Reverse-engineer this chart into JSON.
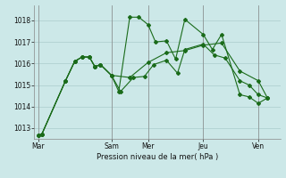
{
  "background_color": "#cce8e8",
  "grid_color": "#aacccc",
  "line_color": "#1a6b1a",
  "marker_color": "#1a6b1a",
  "title": "Pression niveau de la mer( hPa )",
  "ylim": [
    1012.5,
    1018.7
  ],
  "yticks": [
    1013,
    1014,
    1015,
    1016,
    1017,
    1018
  ],
  "day_labels": [
    "Mar",
    "Sam",
    "Mer",
    "Jeu",
    "Ven"
  ],
  "day_positions": [
    0,
    4,
    6,
    9,
    12
  ],
  "xlim": [
    -0.2,
    13.2
  ],
  "series1_x": [
    0,
    0.2,
    1.5,
    2.0,
    2.4,
    2.8,
    3.1,
    3.4,
    4.0,
    4.4,
    5.0,
    5.5,
    6.0,
    6.4,
    7.0,
    7.5,
    8.0,
    9.0,
    9.5,
    10.0,
    11.0,
    11.5,
    12.0,
    12.5
  ],
  "series1_y": [
    1012.65,
    1012.7,
    1015.2,
    1016.1,
    1016.3,
    1016.3,
    1015.85,
    1015.95,
    1015.45,
    1014.7,
    1018.15,
    1018.15,
    1017.8,
    1017.0,
    1017.05,
    1016.2,
    1018.05,
    1017.35,
    1016.65,
    1017.35,
    1014.55,
    1014.45,
    1014.15,
    1014.4
  ],
  "series2_x": [
    0,
    0.2,
    1.5,
    2.0,
    2.4,
    2.8,
    3.1,
    3.4,
    4.0,
    4.5,
    5.2,
    5.8,
    6.3,
    7.0,
    7.6,
    8.0,
    9.0,
    9.6,
    10.2,
    11.0,
    11.5,
    12.0,
    12.5
  ],
  "series2_y": [
    1012.65,
    1012.7,
    1015.2,
    1016.1,
    1016.3,
    1016.3,
    1015.85,
    1015.95,
    1015.45,
    1014.7,
    1015.35,
    1015.4,
    1015.95,
    1016.15,
    1015.55,
    1016.65,
    1016.9,
    1016.4,
    1016.25,
    1015.2,
    1015.0,
    1014.55,
    1014.4
  ],
  "series3_x": [
    0,
    0.2,
    1.5,
    2.0,
    2.4,
    2.8,
    3.1,
    3.4,
    4.0,
    5.0,
    6.0,
    7.0,
    8.0,
    9.0,
    10.0,
    11.0,
    12.0,
    12.5
  ],
  "series3_y": [
    1012.65,
    1012.7,
    1015.2,
    1016.1,
    1016.3,
    1016.3,
    1015.85,
    1015.95,
    1015.45,
    1015.35,
    1016.05,
    1016.5,
    1016.6,
    1016.85,
    1016.95,
    1015.65,
    1015.2,
    1014.4
  ]
}
